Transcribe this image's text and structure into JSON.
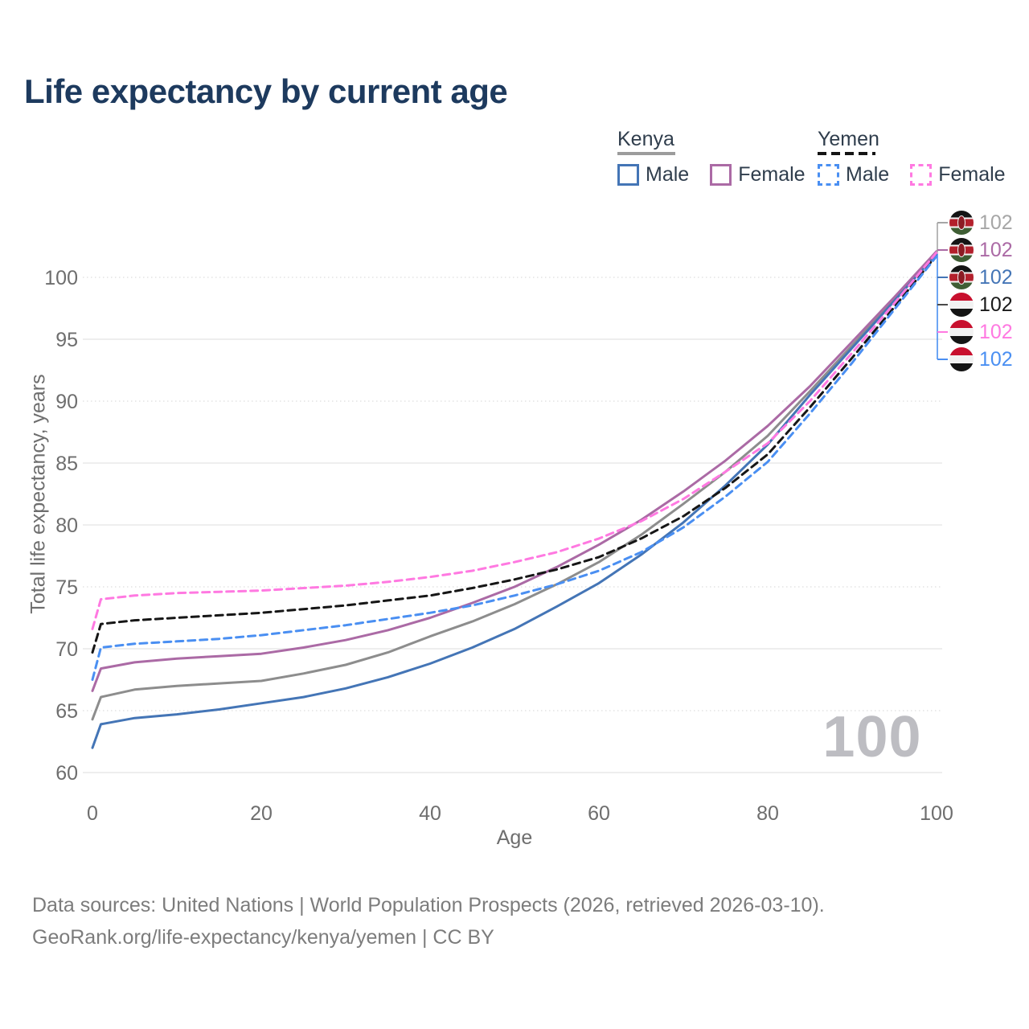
{
  "title": "Life expectancy by current age",
  "legend": {
    "position": "top-right",
    "groups": [
      {
        "label": "Kenya",
        "line_style": "solid",
        "rule_color": "#9c9c9c",
        "items": [
          {
            "label": "Male",
            "color": "#4475b6"
          },
          {
            "label": "Female",
            "color": "#ab6aa5"
          }
        ]
      },
      {
        "label": "Yemen",
        "line_style": "dashed",
        "rule_color": "#141414",
        "items": [
          {
            "label": "Male",
            "color": "#4a8ff2"
          },
          {
            "label": "Female",
            "color": "#ff79e1"
          }
        ]
      }
    ]
  },
  "chart_data": {
    "type": "line",
    "title": "Life expectancy by current age",
    "xlabel": "Age",
    "ylabel": "Total life expectancy, years",
    "xlim": [
      0,
      100
    ],
    "ylim": [
      60,
      102.5
    ],
    "xticks": [
      0,
      20,
      40,
      60,
      80,
      100
    ],
    "yticks": [
      60,
      65,
      70,
      75,
      80,
      85,
      90,
      95,
      100
    ],
    "grid": "on",
    "dotted_gridlines": [
      65,
      75,
      90,
      100
    ],
    "legend_position": "top-right",
    "x": [
      0,
      1,
      5,
      10,
      15,
      20,
      25,
      30,
      35,
      40,
      45,
      50,
      55,
      60,
      65,
      70,
      75,
      80,
      85,
      90,
      95,
      100
    ],
    "series": [
      {
        "name": "Kenya — Total",
        "color": "#8d8d8d",
        "dash": false,
        "values": [
          64.3,
          66.1,
          66.7,
          67.0,
          67.2,
          67.4,
          68.0,
          68.7,
          69.7,
          71.0,
          72.2,
          73.6,
          75.2,
          77.0,
          79.2,
          81.7,
          84.3,
          87.2,
          90.8,
          94.5,
          98.2,
          102.0
        ]
      },
      {
        "name": "Kenya — Male",
        "color": "#4475b6",
        "dash": false,
        "values": [
          62.0,
          63.9,
          64.4,
          64.7,
          65.1,
          65.6,
          66.1,
          66.8,
          67.7,
          68.8,
          70.1,
          71.6,
          73.4,
          75.3,
          77.6,
          80.2,
          83.2,
          86.5,
          90.5,
          94.3,
          98.1,
          101.9
        ]
      },
      {
        "name": "Kenya — Female",
        "color": "#ab6aa5",
        "dash": false,
        "values": [
          66.6,
          68.4,
          68.9,
          69.2,
          69.4,
          69.6,
          70.1,
          70.7,
          71.5,
          72.5,
          73.7,
          75.0,
          76.6,
          78.4,
          80.4,
          82.7,
          85.2,
          88.0,
          91.2,
          94.8,
          98.4,
          102.1
        ]
      },
      {
        "name": "Yemen — Total",
        "color": "#161616",
        "dash": true,
        "values": [
          69.7,
          72.0,
          72.3,
          72.5,
          72.7,
          72.9,
          73.2,
          73.5,
          73.9,
          74.3,
          74.9,
          75.6,
          76.4,
          77.4,
          78.9,
          80.7,
          83.0,
          85.7,
          89.5,
          93.5,
          97.6,
          101.8
        ]
      },
      {
        "name": "Yemen — Male",
        "color": "#4a8ff2",
        "dash": true,
        "values": [
          67.5,
          70.1,
          70.4,
          70.6,
          70.8,
          71.1,
          71.5,
          71.9,
          72.4,
          72.9,
          73.5,
          74.3,
          75.2,
          76.3,
          77.8,
          79.8,
          82.3,
          85.1,
          89.0,
          93.1,
          97.4,
          101.7
        ]
      },
      {
        "name": "Yemen — Female",
        "color": "#ff79e1",
        "dash": true,
        "values": [
          71.6,
          74.0,
          74.3,
          74.5,
          74.6,
          74.7,
          74.9,
          75.1,
          75.4,
          75.8,
          76.3,
          77.0,
          77.8,
          78.9,
          80.3,
          82.1,
          84.3,
          86.6,
          90.0,
          93.9,
          97.9,
          102.0
        ]
      }
    ]
  },
  "endpoints": {
    "rows": [
      {
        "flag": "kenya",
        "value": "102",
        "color": "#a6a6a6"
      },
      {
        "flag": "kenya",
        "value": "102",
        "color": "#ab6aa5"
      },
      {
        "flag": "kenya",
        "value": "102",
        "color": "#4475b6"
      },
      {
        "flag": "yemen",
        "value": "102",
        "color": "#1a1a1a"
      },
      {
        "flag": "yemen",
        "value": "102",
        "color": "#ff79e1"
      },
      {
        "flag": "yemen",
        "value": "102",
        "color": "#4a8ff2"
      }
    ]
  },
  "watermark": {
    "current_age": "100"
  },
  "axes": {
    "x_title": "Age",
    "y_title": "Total life expectancy, years"
  },
  "footer": {
    "line1": "Data sources: United Nations | World Population Prospects (2026, retrieved 2026-03-10).",
    "line2": "GeoRank.org/life-expectancy/kenya/yemen | CC BY"
  },
  "colors": {
    "title": "#1d3a5e",
    "axis_text": "#6e6e6e",
    "gridline": "#e9e9e9",
    "watermark": "#bdbdc2",
    "footer_text": "#7c7c7c"
  }
}
